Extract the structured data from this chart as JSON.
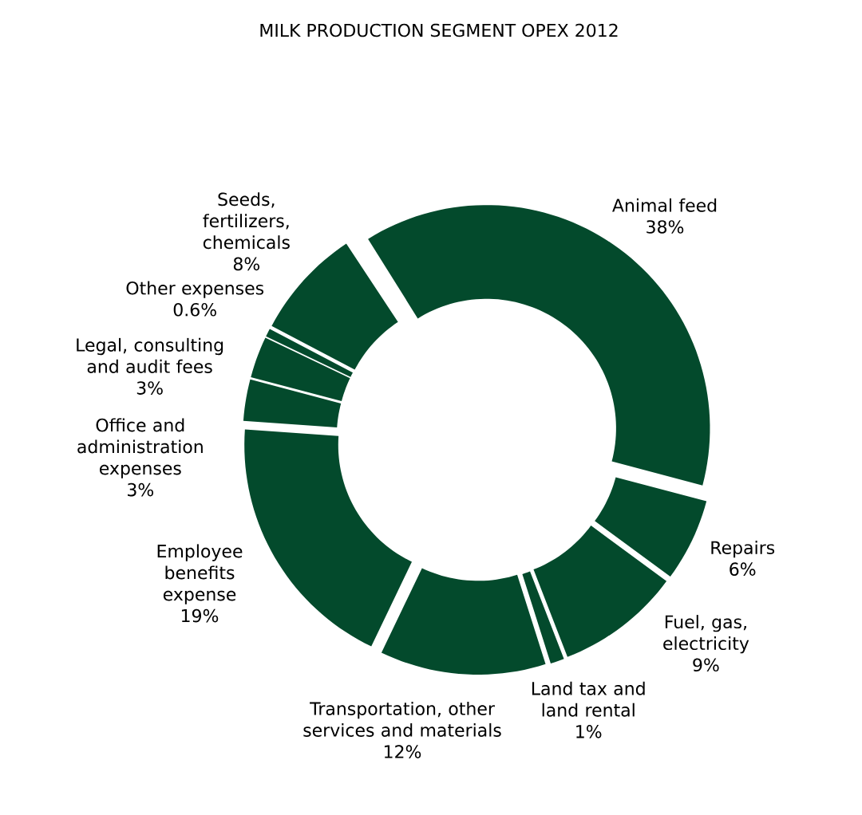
{
  "chart_data": {
    "type": "donut",
    "title": "MILK PRODUCTION SEGMENT OPEX  2012",
    "categories": [
      "Animal feed",
      "Repairs",
      "Fuel, gas, electricity",
      "Land tax and land rental",
      "Transportation, other services and materials",
      "Employee benefits expense",
      "Office and administration expenses",
      "Legal, consulting and audit fees",
      "Other expenses",
      "Seeds, fertilizers, chemicals"
    ],
    "values": [
      38,
      6,
      9,
      1,
      12,
      19,
      3,
      3,
      0.6,
      8
    ],
    "value_labels": [
      "38%",
      "6%",
      "9%",
      "1%",
      "12%",
      "19%",
      "3%",
      "3%",
      "0.6%",
      "8%"
    ],
    "colors": [
      "#034a2c",
      "#034a2c",
      "#034a2c",
      "#034a2c",
      "#034a2c",
      "#034a2c",
      "#034a2c",
      "#034a2c",
      "#034a2c",
      "#034a2c"
    ]
  }
}
